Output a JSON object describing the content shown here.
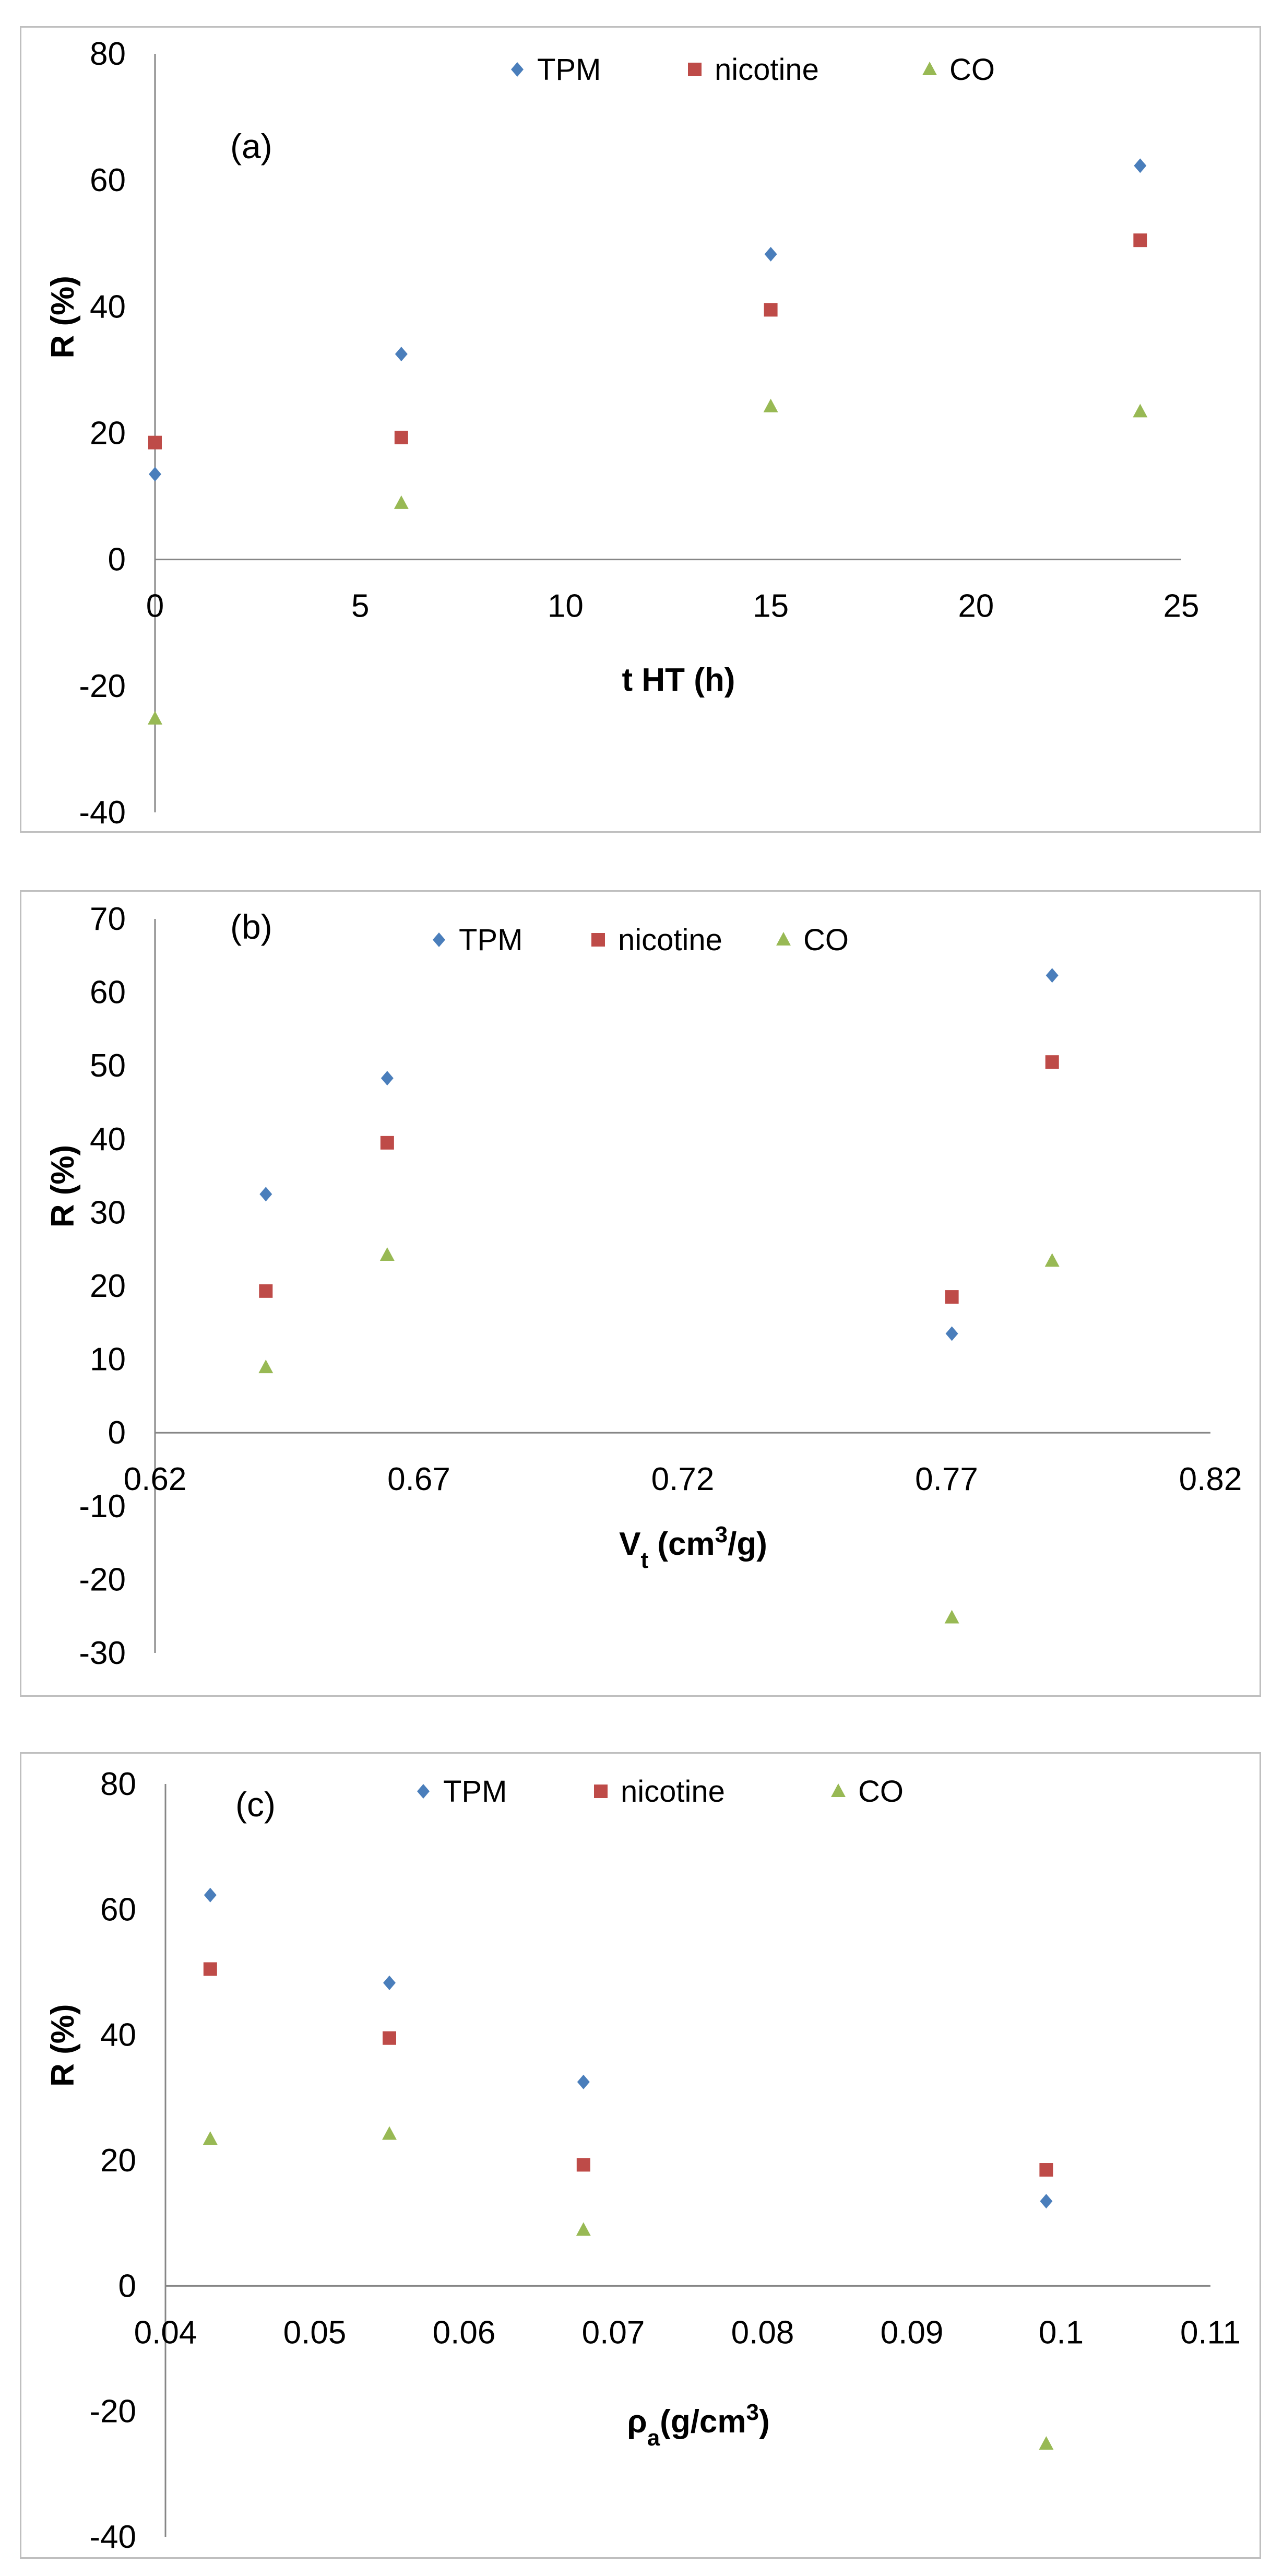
{
  "colors": {
    "TPM": "#4a7ebb",
    "nicotine": "#be4b48",
    "CO": "#98b954",
    "axis": "#868686",
    "frame": "#bfbfbf"
  },
  "chart_data": [
    {
      "type": "scatter",
      "panel_label": "(a)",
      "xlabel": "t HT (h)",
      "ylabel": "R (%)",
      "xlim": [
        0,
        25
      ],
      "ylim": [
        -40,
        80
      ],
      "x_ticks": [
        "0",
        "5",
        "10",
        "15",
        "20",
        "25"
      ],
      "y_ticks": [
        "-40",
        "-20",
        "0",
        "20",
        "40",
        "60",
        "80"
      ],
      "x": [
        0,
        6,
        15,
        24
      ],
      "series": [
        {
          "name": "TPM",
          "marker": "diamond",
          "values": [
            13.5,
            32.5,
            48.3,
            62.3
          ]
        },
        {
          "name": "nicotine",
          "marker": "square",
          "values": [
            18.5,
            19.3,
            39.5,
            50.5
          ]
        },
        {
          "name": "CO",
          "marker": "triangle",
          "values": [
            -25.2,
            8.9,
            24.2,
            23.4
          ]
        }
      ],
      "legend": "top"
    },
    {
      "type": "scatter",
      "panel_label": "(b)",
      "xlabel": "V",
      "xlabel_sub": "t",
      "xlabel_unit_pre": " (cm",
      "xlabel_unit_sup": "3",
      "xlabel_unit_post": "/g)",
      "ylabel": "R (%)",
      "xlim": [
        0.62,
        0.82
      ],
      "ylim": [
        -30,
        70
      ],
      "x_ticks": [
        "0.62",
        "0.67",
        "0.72",
        "0.77",
        "0.82"
      ],
      "y_ticks": [
        "-30",
        "-20",
        "-10",
        "0",
        "10",
        "20",
        "30",
        "40",
        "50",
        "60",
        "70"
      ],
      "x": [
        0.641,
        0.664,
        0.771,
        0.79
      ],
      "series": [
        {
          "name": "TPM",
          "marker": "diamond",
          "values": [
            32.5,
            48.3,
            13.5,
            62.3
          ]
        },
        {
          "name": "nicotine",
          "marker": "square",
          "values": [
            19.3,
            39.5,
            18.5,
            50.5
          ]
        },
        {
          "name": "CO",
          "marker": "triangle",
          "values": [
            8.9,
            24.2,
            -25.2,
            23.4
          ]
        }
      ],
      "legend": "top"
    },
    {
      "type": "scatter",
      "panel_label": "(c)",
      "xlabel": "ρ",
      "xlabel_sub": "a",
      "xlabel_unit_pre": "(g/cm",
      "xlabel_unit_sup": "3",
      "xlabel_unit_post": ")",
      "ylabel": "R (%)",
      "xlim": [
        0.04,
        0.11
      ],
      "ylim": [
        -40,
        80
      ],
      "x_ticks": [
        "0.04",
        "0.05",
        "0.06",
        "0.07",
        "0.08",
        "0.09",
        "0.1",
        "0.11"
      ],
      "y_ticks": [
        "-40",
        "-20",
        "0",
        "20",
        "40",
        "60",
        "80"
      ],
      "x": [
        0.043,
        0.055,
        0.068,
        0.099
      ],
      "series": [
        {
          "name": "TPM",
          "marker": "diamond",
          "values": [
            62.3,
            48.3,
            32.5,
            13.5
          ]
        },
        {
          "name": "nicotine",
          "marker": "square",
          "values": [
            50.5,
            39.5,
            19.3,
            18.5
          ]
        },
        {
          "name": "CO",
          "marker": "triangle",
          "values": [
            23.4,
            24.2,
            8.9,
            -25.2
          ]
        }
      ],
      "legend": "top"
    }
  ]
}
